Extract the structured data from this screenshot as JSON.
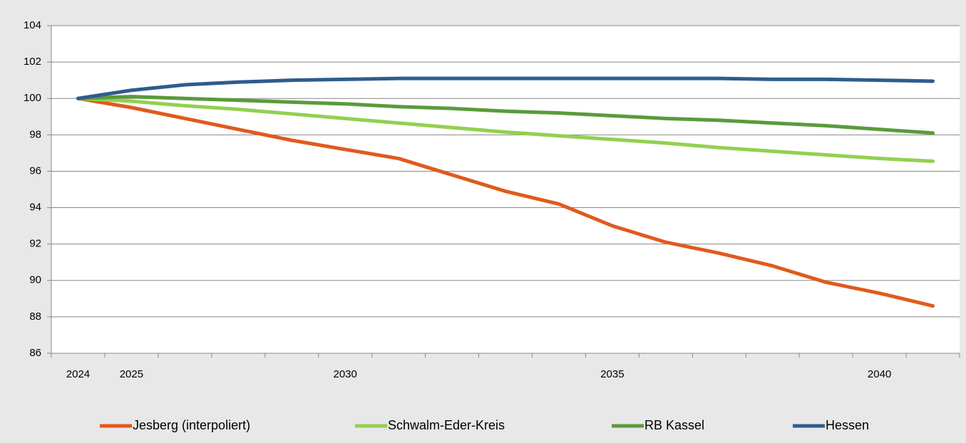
{
  "chart_data": {
    "type": "line",
    "categories": [
      "2024",
      "2025",
      null,
      null,
      null,
      "2030",
      null,
      null,
      null,
      null,
      "2035",
      null,
      null,
      null,
      null,
      "2040",
      null
    ],
    "ylim": [
      86,
      104
    ],
    "yticks": [
      86,
      88,
      90,
      92,
      94,
      96,
      98,
      100,
      102,
      104
    ],
    "grid": true,
    "legend": "bottom",
    "series": [
      {
        "name": "Jesberg (interpoliert)",
        "color": "#e05a1e",
        "values": [
          100,
          99.5,
          98.9,
          98.3,
          97.7,
          97.2,
          96.7,
          95.8,
          94.9,
          94.2,
          93.0,
          92.1,
          91.5,
          90.8,
          89.9,
          89.3,
          88.6
        ]
      },
      {
        "name": "Schwalm-Eder-Kreis",
        "color": "#92d050",
        "values": [
          100,
          99.85,
          99.6,
          99.4,
          99.15,
          98.9,
          98.65,
          98.4,
          98.15,
          97.95,
          97.75,
          97.55,
          97.3,
          97.1,
          96.9,
          96.7,
          96.55
        ]
      },
      {
        "name": "RB Kassel",
        "color": "#5a9a3b",
        "values": [
          100,
          100.1,
          100.0,
          99.9,
          99.8,
          99.7,
          99.55,
          99.45,
          99.3,
          99.2,
          99.05,
          98.9,
          98.8,
          98.65,
          98.5,
          98.3,
          98.1
        ]
      },
      {
        "name": "Hessen",
        "color": "#2e5c8e",
        "values": [
          100,
          100.45,
          100.75,
          100.9,
          101.0,
          101.05,
          101.1,
          101.1,
          101.1,
          101.1,
          101.1,
          101.1,
          101.1,
          101.05,
          101.05,
          101.0,
          100.95
        ]
      }
    ]
  }
}
